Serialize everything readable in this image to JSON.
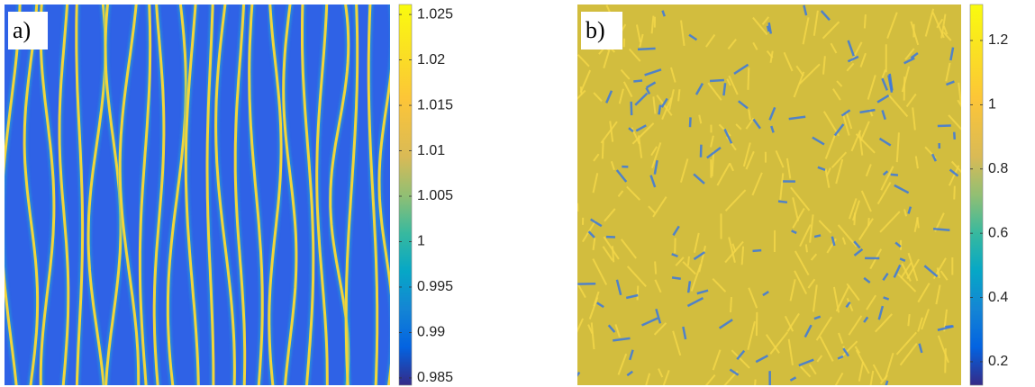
{
  "chart_data": [
    {
      "type": "heatmap",
      "label": "a)",
      "clim": [
        0.9842,
        1.0261
      ],
      "cticks": [
        0.985,
        0.99,
        0.995,
        1,
        1.005,
        1.01,
        1.015,
        1.02,
        1.025
      ]
    },
    {
      "type": "heatmap",
      "label": "b)",
      "clim": [
        0.127,
        1.312
      ],
      "cticks": [
        0.2,
        0.4,
        0.6,
        0.8,
        1,
        1.2
      ]
    }
  ]
}
